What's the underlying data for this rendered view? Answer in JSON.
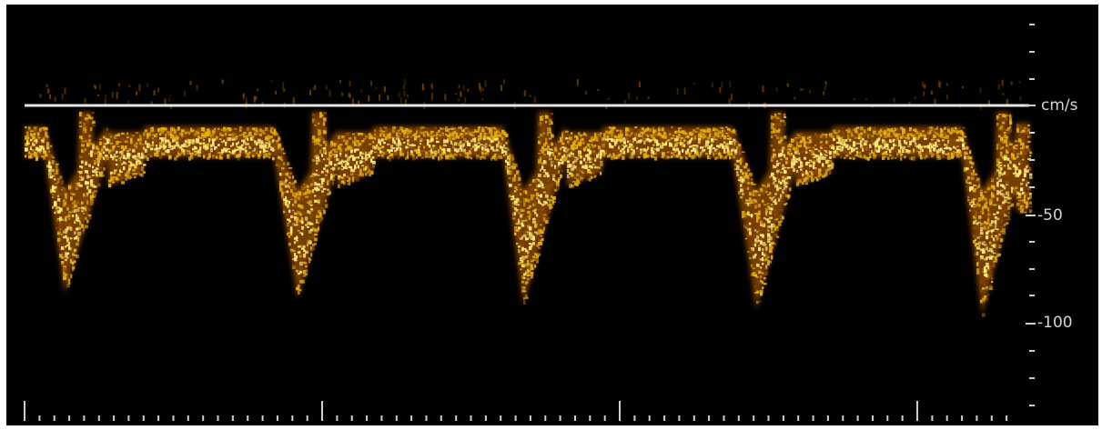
{
  "scale": {
    "units": "cm/s",
    "tick_labels": [
      "-50",
      "-100"
    ]
  },
  "colors": {
    "background": "#000000",
    "baseline": "#e6e6e6",
    "scale_text": "#d4d4d4",
    "spectrum_bright": "#fff07a",
    "spectrum_mid": "#e8b000",
    "spectrum_dark": "#8a4a00"
  }
}
